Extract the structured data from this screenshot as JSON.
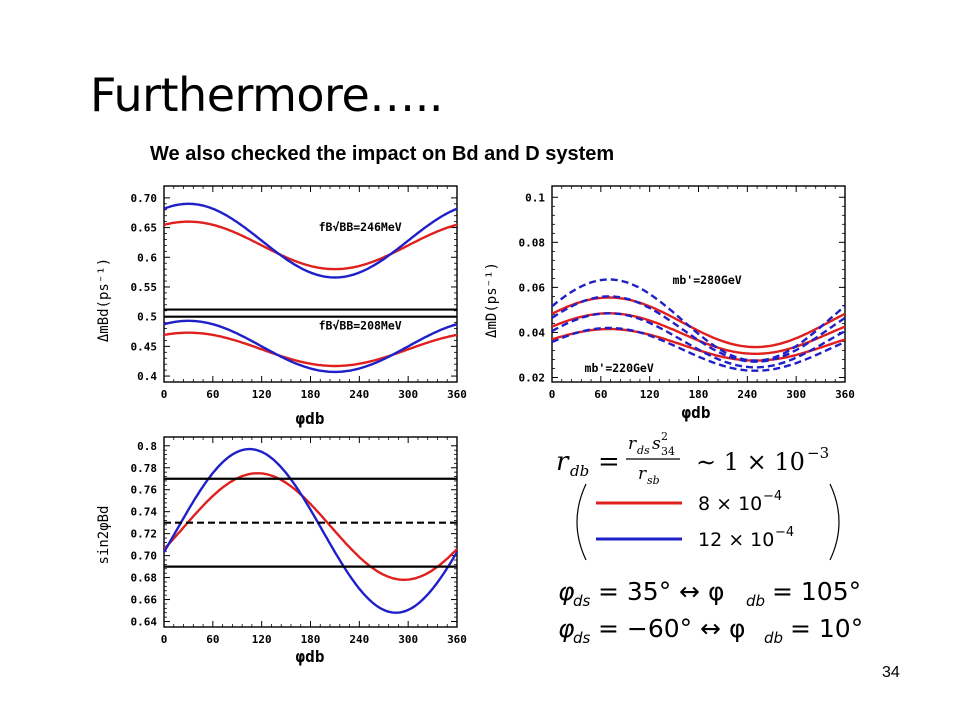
{
  "slide": {
    "title": "Furthermore…..",
    "subtitle": "We also checked the impact on  Bd and D system",
    "page_number": "34"
  },
  "colors": {
    "red": "#e0201e",
    "blue": "#1f20c8",
    "black": "#000000"
  },
  "formulas": {
    "rdb_lhs": "r",
    "rdb_lhs_sub": "db",
    "rdb_eq": "=",
    "rdb_num": "r",
    "rdb_num_sub": "ds",
    "rdb_num_s": "s",
    "rdb_num_s_sup": "2",
    "rdb_num_s_sub": "34",
    "rdb_den": "r",
    "rdb_den_sub": "sb",
    "rdb_approx": "∼ 1 × 10",
    "rdb_approx_exp": "−3",
    "legend_red_text": "8 × 10",
    "legend_red_exp": "−4",
    "legend_blue_text": "12 × 10",
    "legend_blue_exp": "−4",
    "phi1_lhs": "φ",
    "phi1_lhs_sub": "ds",
    "phi1_mid": "= 35° ↔ φ",
    "phi1_mid_sub": "db",
    "phi1_rhs": "= 105°",
    "phi2_lhs": "φ",
    "phi2_lhs_sub": "ds",
    "phi2_mid": "= −60° ↔ φ",
    "phi2_mid_sub": "db",
    "phi2_rhs": "= 10°"
  },
  "chart_data": [
    {
      "type": "line",
      "id": "bd-mass",
      "xlabel": "φdb",
      "ylabel": "ΔmBd(ps⁻¹)",
      "xlim": [
        0,
        360
      ],
      "ylim": [
        0.39,
        0.72
      ],
      "xticks": [
        0,
        60,
        120,
        180,
        240,
        300,
        360
      ],
      "yticks": [
        0.4,
        0.45,
        0.5,
        0.55,
        0.6,
        0.65,
        0.7
      ],
      "ytick_labels": [
        "0.4",
        "0.45",
        "0.5",
        "0.55",
        "0.6",
        "0.65",
        "0.70"
      ],
      "annotations": [
        {
          "text": "fB√BB=246MeV",
          "x": 190,
          "y": 0.644
        },
        {
          "text": "fB√BB=208MeV",
          "x": 190,
          "y": 0.478
        }
      ],
      "series": [
        {
          "color": "red",
          "sin": {
            "mid": 0.62,
            "amp": 0.04,
            "peak": 30
          }
        },
        {
          "color": "blue",
          "sin": {
            "mid": 0.628,
            "amp": 0.062,
            "peak": 30
          }
        },
        {
          "color": "red",
          "sin": {
            "mid": 0.445,
            "amp": 0.028,
            "peak": 30
          }
        },
        {
          "color": "blue",
          "sin": {
            "mid": 0.45,
            "amp": 0.043,
            "peak": 30
          }
        },
        {
          "color": "black",
          "const": 0.512
        },
        {
          "color": "black",
          "const": 0.5
        }
      ]
    },
    {
      "type": "line",
      "id": "d-mass",
      "xlabel": "φdb",
      "ylabel": "ΔmD(ps⁻¹)",
      "xlim": [
        0,
        360
      ],
      "ylim": [
        0.018,
        0.105
      ],
      "xticks": [
        0,
        60,
        120,
        180,
        240,
        300,
        360
      ],
      "yticks": [
        0.02,
        0.04,
        0.06,
        0.08,
        0.1
      ],
      "ytick_labels": [
        "0.02",
        "0.04",
        "0.06",
        "0.08",
        "0.1"
      ],
      "annotations": [
        {
          "text": "mb'=280GeV",
          "x": 148,
          "y": 0.0615
        },
        {
          "text": "mb'=220GeV",
          "x": 40,
          "y": 0.0225
        }
      ],
      "series": [
        {
          "color": "red",
          "sin": {
            "mid": 0.0445,
            "amp": 0.011,
            "peak": 70
          }
        },
        {
          "color": "red",
          "sin": {
            "mid": 0.0395,
            "amp": 0.009,
            "peak": 70
          }
        },
        {
          "color": "red",
          "sin": {
            "mid": 0.0345,
            "amp": 0.007,
            "peak": 70
          }
        },
        {
          "color": "blue",
          "dashed": true,
          "sin": {
            "mid": 0.0455,
            "amp": 0.018,
            "peak": 70
          }
        },
        {
          "color": "blue",
          "dashed": true,
          "sin": {
            "mid": 0.0415,
            "amp": 0.0145,
            "peak": 70
          }
        },
        {
          "color": "blue",
          "dashed": true,
          "sin": {
            "mid": 0.0365,
            "amp": 0.012,
            "peak": 70
          }
        },
        {
          "color": "blue",
          "dashed": true,
          "sin": {
            "mid": 0.0325,
            "amp": 0.0095,
            "peak": 70
          }
        }
      ]
    },
    {
      "type": "line",
      "id": "sin2phi",
      "xlabel": "φdb",
      "ylabel": "sin2φBd",
      "xlim": [
        0,
        360
      ],
      "ylim": [
        0.635,
        0.808
      ],
      "xticks": [
        0,
        60,
        120,
        180,
        240,
        300,
        360
      ],
      "yticks": [
        0.64,
        0.66,
        0.68,
        0.7,
        0.72,
        0.74,
        0.76,
        0.78,
        0.8
      ],
      "ytick_labels": [
        "0.64",
        "0.66",
        "0.68",
        "0.70",
        "0.72",
        "0.74",
        "0.76",
        "0.78",
        "0.8"
      ],
      "series": [
        {
          "color": "red",
          "sin": {
            "mid": 0.7265,
            "amp": 0.0485,
            "peak": 115
          }
        },
        {
          "color": "blue",
          "sin": {
            "mid": 0.7225,
            "amp": 0.0745,
            "peak": 105
          }
        },
        {
          "color": "black",
          "const": 0.77
        },
        {
          "color": "black",
          "dashed": true,
          "const": 0.73
        },
        {
          "color": "black",
          "const": 0.69
        }
      ]
    }
  ]
}
